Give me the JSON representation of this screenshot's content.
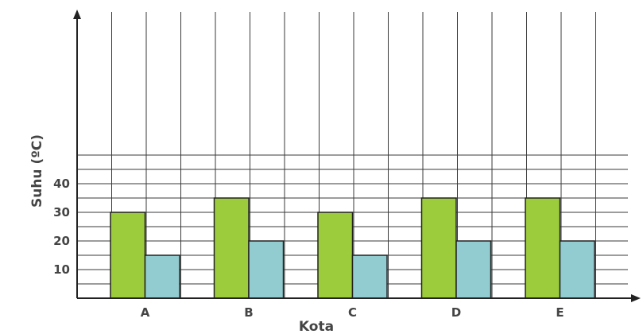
{
  "chart_data": {
    "type": "bar",
    "title": "",
    "xlabel": "Kota",
    "ylabel": "Suhu (ºC)",
    "categories": [
      "A",
      "B",
      "C",
      "D",
      "E"
    ],
    "series": [
      {
        "values": [
          30,
          35,
          30,
          35,
          35
        ],
        "color": "#9ccc3c"
      },
      {
        "values": [
          15,
          20,
          15,
          20,
          20
        ],
        "color": "#92ccd0"
      }
    ],
    "ylim": [
      0,
      50
    ],
    "yticks": [
      10,
      20,
      30,
      40
    ],
    "grid": true,
    "legend": "none"
  }
}
